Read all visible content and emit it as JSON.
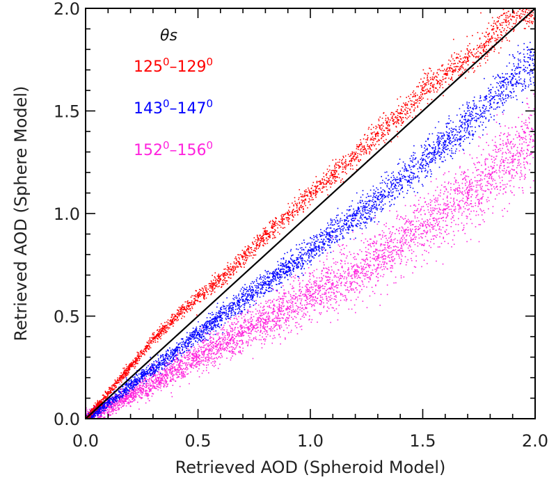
{
  "chart_data": {
    "type": "scatter",
    "title": "",
    "xlabel": "Retrieved AOD (Spheroid Model)",
    "ylabel": "Retrieved AOD (Sphere Model)",
    "xlim": [
      0.0,
      2.0
    ],
    "ylim": [
      0.0,
      2.0
    ],
    "x_ticks": [
      "0.0",
      "0.5",
      "1.0",
      "1.5",
      "2.0"
    ],
    "y_ticks": [
      "0.0",
      "0.5",
      "1.0",
      "1.5",
      "2.0"
    ],
    "grid": false,
    "one_to_one_line": true,
    "legend_title": "θs",
    "legend_position": "top-left",
    "series": [
      {
        "name": "125°–129°",
        "label_parts": [
          "125",
          "0",
          "–129",
          "0"
        ],
        "color": "#ff0000",
        "x": [
          0.0,
          0.1,
          0.2,
          0.3,
          0.4,
          0.5,
          0.6,
          0.7,
          0.8,
          0.9,
          1.0,
          1.1,
          1.2,
          1.3,
          1.4,
          1.5,
          1.6,
          1.7,
          1.8,
          1.9,
          2.0
        ],
        "y": [
          0.0,
          0.13,
          0.26,
          0.39,
          0.5,
          0.6,
          0.68,
          0.79,
          0.9,
          1.0,
          1.1,
          1.19,
          1.29,
          1.39,
          1.49,
          1.6,
          1.68,
          1.76,
          1.85,
          1.96,
          2.0
        ]
      },
      {
        "name": "143°–147°",
        "label_parts": [
          "143",
          "0",
          "–147",
          "0"
        ],
        "color": "#0000ff",
        "x": [
          0.0,
          0.1,
          0.2,
          0.3,
          0.4,
          0.5,
          0.6,
          0.7,
          0.8,
          0.9,
          1.0,
          1.1,
          1.2,
          1.3,
          1.4,
          1.5,
          1.6,
          1.7,
          1.8,
          1.9,
          2.0
        ],
        "y": [
          0.0,
          0.08,
          0.17,
          0.25,
          0.33,
          0.42,
          0.5,
          0.58,
          0.66,
          0.74,
          0.82,
          0.91,
          0.99,
          1.07,
          1.16,
          1.26,
          1.35,
          1.45,
          1.55,
          1.66,
          1.75
        ]
      },
      {
        "name": "152°–156°",
        "label_parts": [
          "152",
          "0",
          "–156",
          "0"
        ],
        "color": "#ff22dd",
        "x": [
          0.0,
          0.1,
          0.2,
          0.3,
          0.4,
          0.5,
          0.6,
          0.7,
          0.8,
          0.9,
          1.0,
          1.1,
          1.2,
          1.3,
          1.4,
          1.5,
          1.6,
          1.7,
          1.8,
          1.9,
          2.0
        ],
        "y": [
          0.0,
          0.06,
          0.12,
          0.18,
          0.24,
          0.3,
          0.36,
          0.42,
          0.48,
          0.54,
          0.6,
          0.66,
          0.72,
          0.79,
          0.86,
          0.94,
          1.02,
          1.1,
          1.19,
          1.28,
          1.38
        ]
      }
    ]
  }
}
